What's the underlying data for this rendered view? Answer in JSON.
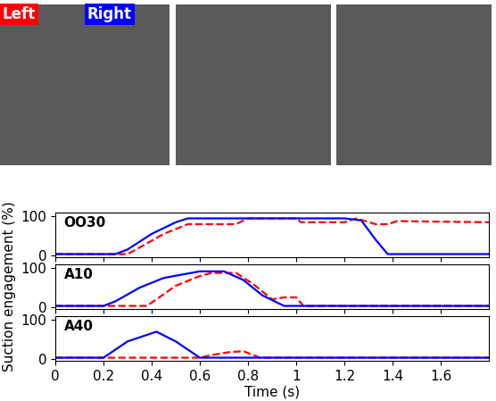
{
  "chart_data": [
    {
      "type": "line",
      "title": "OO30",
      "xlim": [
        0,
        1.8
      ],
      "xticks": [
        0,
        0.2,
        0.4,
        0.6,
        0.8,
        1,
        1.2,
        1.4,
        1.6
      ],
      "ylim": [
        -5,
        110
      ],
      "yticks": [
        0,
        100
      ],
      "tick_labels": "y",
      "series": [
        {
          "name": "Left",
          "color": "#ff0000",
          "line_style": "dashed",
          "x": [
            0,
            0.3,
            0.35,
            0.45,
            0.55,
            0.75,
            0.8,
            1.0,
            1.02,
            1.2,
            1.25,
            1.33,
            1.38,
            1.42,
            1.8
          ],
          "values": [
            3,
            3,
            20,
            55,
            80,
            80,
            95,
            95,
            85,
            85,
            95,
            80,
            80,
            88,
            85
          ]
        },
        {
          "name": "Right",
          "color": "#0000ff",
          "line_style": "solid",
          "x": [
            0,
            0.25,
            0.3,
            0.4,
            0.5,
            0.55,
            1.2,
            1.27,
            1.33,
            1.38,
            1.8
          ],
          "values": [
            3,
            3,
            15,
            55,
            85,
            95,
            95,
            90,
            40,
            3,
            3
          ]
        }
      ]
    },
    {
      "type": "line",
      "title": "A10",
      "y_label": "Suction engagement (%)",
      "xlim": [
        0,
        1.8
      ],
      "xticks": [
        0,
        0.2,
        0.4,
        0.6,
        0.8,
        1,
        1.2,
        1.4,
        1.6
      ],
      "ylim": [
        -5,
        110
      ],
      "yticks": [
        0,
        100
      ],
      "tick_labels": "y",
      "series": [
        {
          "name": "Left",
          "color": "#ff0000",
          "line_style": "dashed",
          "x": [
            0,
            0.38,
            0.42,
            0.5,
            0.6,
            0.65,
            0.75,
            0.82,
            0.9,
            0.95,
            1.0,
            1.03,
            1.8
          ],
          "values": [
            3,
            3,
            20,
            55,
            80,
            88,
            88,
            60,
            20,
            25,
            25,
            3,
            3
          ]
        },
        {
          "name": "Right",
          "color": "#0000ff",
          "line_style": "solid",
          "x": [
            0,
            0.2,
            0.25,
            0.35,
            0.45,
            0.6,
            0.7,
            0.78,
            0.86,
            0.95,
            1.8
          ],
          "values": [
            3,
            3,
            15,
            50,
            75,
            92,
            92,
            70,
            30,
            3,
            3
          ]
        }
      ]
    },
    {
      "type": "line",
      "title": "A40",
      "x_label": "Time (s)",
      "xlim": [
        0,
        1.8
      ],
      "xticks": [
        0,
        0.2,
        0.4,
        0.6,
        0.8,
        1,
        1.2,
        1.4,
        1.6
      ],
      "ylim": [
        -5,
        110
      ],
      "yticks": [
        0,
        100
      ],
      "series": [
        {
          "name": "Left",
          "color": "#ff0000",
          "line_style": "dashed",
          "x": [
            0,
            0.6,
            0.65,
            0.72,
            0.78,
            0.85,
            1.8
          ],
          "values": [
            3,
            3,
            10,
            17,
            20,
            3,
            3
          ]
        },
        {
          "name": "Right",
          "color": "#0000ff",
          "line_style": "solid",
          "x": [
            0,
            0.2,
            0.3,
            0.42,
            0.5,
            0.6,
            1.8
          ],
          "values": [
            3,
            3,
            45,
            70,
            45,
            3,
            3
          ]
        }
      ]
    }
  ]
}
